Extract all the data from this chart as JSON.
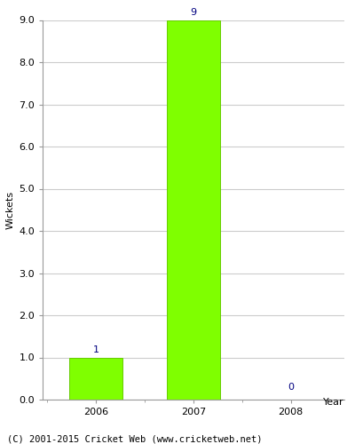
{
  "categories": [
    "2006",
    "2007",
    "2008"
  ],
  "values": [
    1,
    9,
    0
  ],
  "bar_color": "#7fff00",
  "bar_edgecolor": "#66cc00",
  "value_labels": [
    "1",
    "9",
    "0"
  ],
  "ylabel": "Wickets",
  "xlabel": "Year",
  "ylim": [
    0.0,
    9.0
  ],
  "yticks": [
    0.0,
    1.0,
    2.0,
    3.0,
    4.0,
    5.0,
    6.0,
    7.0,
    8.0,
    9.0
  ],
  "label_color": "#000080",
  "label_fontsize": 8,
  "axis_label_fontsize": 8,
  "tick_fontsize": 8,
  "background_color": "#ffffff",
  "plot_bg_color": "#ffffff",
  "footer_text": "(C) 2001-2015 Cricket Web (www.cricketweb.net)",
  "footer_fontsize": 7.5,
  "grid_color": "#cccccc",
  "bar_width": 0.55,
  "spine_color": "#999999"
}
